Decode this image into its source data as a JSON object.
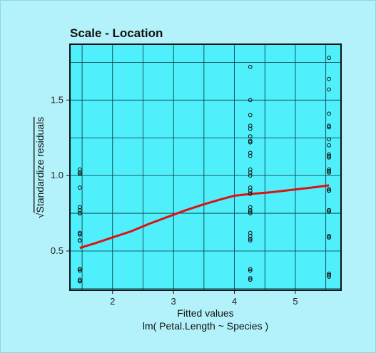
{
  "chart_data": {
    "type": "scatter",
    "title": "Scale - Location",
    "xlabel": "Fitted values",
    "subtitle": "lm( Petal.Length ~ Species )",
    "ylabel": "Standardize residuals",
    "ylabel_prefix": "√",
    "xlim": [
      1.3,
      5.75
    ],
    "ylim": [
      0.24,
      1.87
    ],
    "xticks": [
      2,
      3,
      4,
      5
    ],
    "yticks": [
      0.5,
      1.0,
      1.5
    ],
    "ytick_labels": [
      "0.5",
      "1.0",
      "1.5"
    ],
    "grid": true,
    "colors": {
      "page_background": "#b3f2fa",
      "plot_background": "#4ff0fb",
      "grid": "#0a2f36",
      "points": "#111111",
      "smooth_line": "#dd1111"
    },
    "series": [
      {
        "x": [
          1.462,
          1.462,
          1.462,
          1.462,
          1.462,
          1.462,
          1.462,
          1.462,
          1.462,
          1.462,
          1.462,
          1.462,
          1.462,
          1.462,
          1.462,
          1.462,
          1.462,
          1.462,
          1.462,
          1.462,
          1.462,
          1.462,
          1.462,
          1.462,
          4.26,
          4.26,
          4.26,
          4.26,
          4.26,
          4.26,
          4.26,
          4.26,
          4.26,
          4.26,
          4.26,
          4.26,
          4.26,
          4.26,
          4.26,
          4.26,
          4.26,
          4.26,
          4.26,
          4.26,
          4.26,
          4.26,
          4.26,
          4.26,
          4.26,
          4.26,
          4.26,
          4.26,
          4.26,
          4.26,
          5.552,
          5.552,
          5.552,
          5.552,
          5.552,
          5.552,
          5.552,
          5.552,
          5.552,
          5.552,
          5.552,
          5.552,
          5.552,
          5.552,
          5.552,
          5.552,
          5.552,
          5.552,
          5.552,
          5.552,
          5.552,
          5.552,
          5.552,
          5.552,
          5.552,
          5.552,
          5.552,
          5.552,
          5.552,
          5.552
        ],
        "y": [
          1.04,
          1.02,
          1.01,
          0.92,
          0.79,
          0.77,
          0.75,
          0.75,
          0.62,
          0.61,
          0.57,
          0.57,
          0.38,
          0.38,
          0.37,
          0.31,
          0.3,
          0.3,
          1.02,
          0.75,
          0.61,
          0.38,
          0.3,
          0.57,
          1.72,
          1.5,
          1.4,
          1.33,
          1.31,
          1.26,
          1.23,
          1.22,
          1.15,
          1.13,
          1.04,
          1.02,
          1.0,
          0.92,
          0.9,
          0.88,
          0.79,
          0.77,
          0.76,
          0.75,
          0.62,
          0.6,
          0.58,
          0.57,
          0.38,
          0.37,
          0.32,
          0.31,
          1.22,
          0.88,
          1.78,
          1.64,
          1.57,
          1.41,
          1.33,
          1.32,
          1.24,
          1.2,
          1.14,
          1.13,
          1.12,
          1.04,
          1.03,
          1.03,
          1.02,
          0.91,
          0.9,
          0.9,
          0.77,
          0.77,
          0.76,
          0.6,
          0.59,
          0.35,
          0.34,
          0.33,
          1.12,
          0.9,
          0.77,
          0.59
        ]
      }
    ],
    "smooth_line": {
      "x": [
        1.462,
        1.7,
        2.0,
        2.3,
        2.6,
        2.9,
        3.2,
        3.5,
        3.8,
        4.0,
        4.26,
        4.6,
        5.0,
        5.3,
        5.552
      ],
      "y": [
        0.52,
        0.55,
        0.59,
        0.63,
        0.68,
        0.725,
        0.77,
        0.81,
        0.845,
        0.866,
        0.878,
        0.889,
        0.908,
        0.922,
        0.935
      ]
    }
  }
}
